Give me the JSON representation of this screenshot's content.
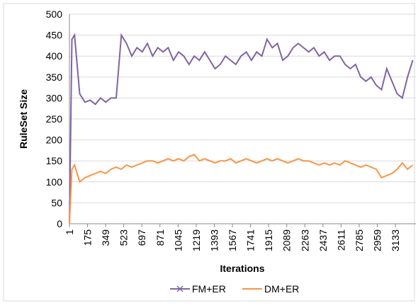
{
  "chart_data": {
    "type": "line",
    "x_label": "Iterations",
    "y_label": "RuleSet Size",
    "x": [
      1,
      25,
      50,
      100,
      150,
      200,
      250,
      300,
      350,
      400,
      450,
      500,
      550,
      600,
      650,
      700,
      750,
      800,
      850,
      900,
      950,
      1000,
      1050,
      1100,
      1150,
      1200,
      1250,
      1300,
      1350,
      1400,
      1450,
      1500,
      1550,
      1600,
      1650,
      1700,
      1750,
      1800,
      1850,
      1900,
      1950,
      2000,
      2050,
      2100,
      2150,
      2200,
      2250,
      2300,
      2350,
      2400,
      2450,
      2500,
      2550,
      2600,
      2650,
      2700,
      2750,
      2800,
      2850,
      2900,
      2950,
      3000,
      3050,
      3100,
      3150,
      3200,
      3250,
      3300
    ],
    "series": [
      {
        "name": "FM+ER",
        "color": "#8064a2",
        "values": [
          0,
          440,
          450,
          310,
          290,
          295,
          285,
          300,
          290,
          300,
          300,
          450,
          430,
          400,
          420,
          410,
          430,
          400,
          420,
          410,
          420,
          390,
          410,
          400,
          380,
          400,
          390,
          410,
          390,
          370,
          380,
          400,
          390,
          380,
          400,
          410,
          390,
          410,
          400,
          440,
          420,
          430,
          390,
          400,
          420,
          430,
          420,
          410,
          420,
          400,
          410,
          390,
          400,
          400,
          380,
          370,
          380,
          350,
          340,
          350,
          330,
          320,
          370,
          340,
          310,
          300,
          350,
          390
        ]
      },
      {
        "name": "DM+ER",
        "color": "#f79646",
        "values": [
          0,
          130,
          140,
          100,
          110,
          115,
          120,
          125,
          120,
          130,
          135,
          130,
          140,
          135,
          140,
          145,
          150,
          150,
          145,
          150,
          155,
          150,
          155,
          150,
          160,
          165,
          150,
          155,
          150,
          145,
          150,
          150,
          155,
          145,
          150,
          155,
          150,
          145,
          150,
          155,
          150,
          155,
          150,
          145,
          150,
          155,
          150,
          150,
          145,
          140,
          145,
          140,
          145,
          140,
          150,
          145,
          140,
          135,
          140,
          135,
          130,
          110,
          115,
          120,
          130,
          145,
          130,
          140
        ]
      }
    ],
    "xlim": [
      1,
      3330
    ],
    "xticks": [
      1,
      175,
      349,
      523,
      697,
      871,
      1045,
      1219,
      1393,
      1567,
      1741,
      1915,
      2089,
      2263,
      2437,
      2611,
      2785,
      2959,
      3133
    ],
    "ylim": [
      0,
      500
    ],
    "yticks": [
      0,
      50,
      100,
      150,
      200,
      250,
      300,
      350,
      400,
      450,
      500
    ],
    "grid": true,
    "legend": "bottom"
  }
}
